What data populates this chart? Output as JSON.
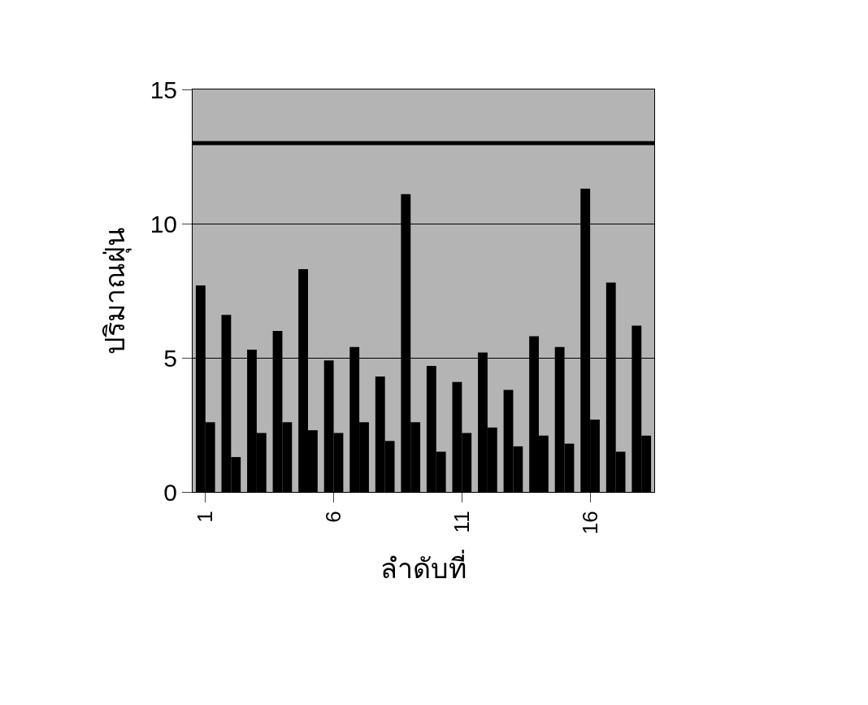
{
  "chart_data": {
    "type": "bar",
    "xlabel": "ลำดับที่",
    "ylabel": "ปริมาณฝุ่น",
    "categories": [
      "1",
      null,
      null,
      null,
      null,
      "6",
      null,
      null,
      null,
      null,
      "11",
      null,
      null,
      null,
      null,
      "16",
      null,
      null
    ],
    "series": [
      {
        "color": "#000000",
        "values": [
          7.7,
          6.6,
          5.3,
          6.0,
          8.3,
          4.9,
          5.4,
          4.3,
          11.1,
          4.7,
          4.1,
          5.2,
          3.8,
          5.8,
          5.4,
          11.3,
          7.8,
          6.2
        ]
      },
      {
        "color": "#000000",
        "values": [
          2.6,
          1.3,
          2.2,
          2.6,
          2.3,
          2.2,
          2.6,
          1.9,
          2.6,
          1.5,
          2.2,
          2.4,
          1.7,
          2.1,
          1.8,
          2.7,
          1.5,
          2.1
        ]
      }
    ],
    "ylim": [
      0,
      15
    ],
    "yticks": [
      0,
      5,
      10,
      15
    ],
    "grid": "y",
    "ref_lines": [
      {
        "axis": "y",
        "value": 13,
        "color": "#000000"
      }
    ]
  }
}
